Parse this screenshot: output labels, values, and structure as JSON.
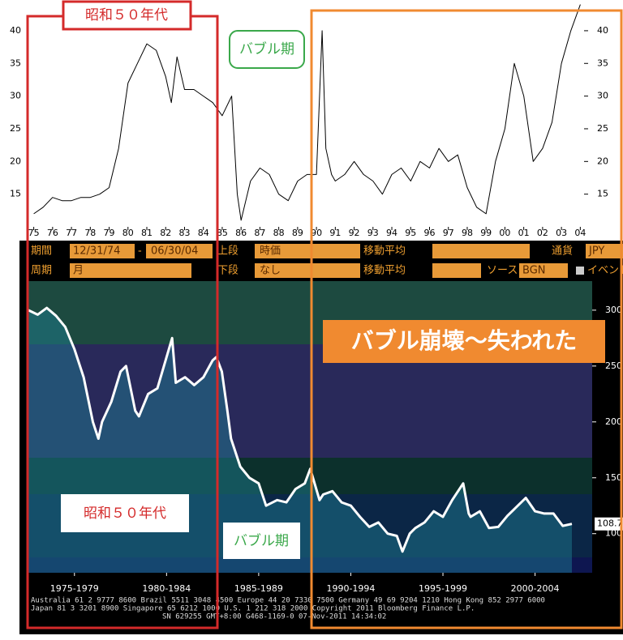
{
  "chart_data": [
    {
      "type": "line",
      "x": [
        1975,
        1975.5,
        1976,
        1976.5,
        1977,
        1977.5,
        1978,
        1978.5,
        1979,
        1979.5,
        1980,
        1980.5,
        1981,
        1981.5,
        1982,
        1982.3,
        1982.6,
        1983,
        1983.5,
        1984,
        1984.5,
        1985,
        1985.5,
        1985.8,
        1986,
        1986.5,
        1987,
        1987.5,
        1988,
        1988.5,
        1989,
        1989.5,
        1990,
        1990.3,
        1990.5,
        1990.8,
        1991,
        1991.5,
        1992,
        1992.5,
        1993,
        1993.5,
        1994,
        1994.5,
        1995,
        1995.5,
        1996,
        1996.5,
        1997,
        1997.5,
        1998,
        1998.5,
        1999,
        1999.5,
        2000,
        2000.5,
        2001,
        2001.5,
        2002,
        2002.5,
        2003,
        2003.5,
        2004
      ],
      "series": [
        {
          "color": "#000000",
          "values": [
            12,
            13,
            14.5,
            14,
            14,
            14.5,
            14.5,
            15,
            16,
            22,
            32,
            35,
            38,
            37,
            33,
            29,
            36,
            31,
            31,
            30,
            29,
            27,
            30,
            15,
            11,
            17,
            19,
            18,
            15,
            14,
            17,
            18,
            18,
            40,
            22,
            18,
            17,
            18,
            20,
            18,
            17,
            15,
            18,
            19,
            17,
            20,
            19,
            22,
            20,
            21,
            16,
            13,
            12,
            20,
            25,
            35,
            30,
            20,
            22,
            26,
            35,
            40,
            44
          ]
        }
      ],
      "xlim": [
        1974.5,
        2004.2
      ],
      "ylim": [
        10,
        44.7
      ],
      "xticks": [
        {
          "value": 1975,
          "label": "75"
        },
        {
          "value": 1976,
          "label": "76"
        },
        {
          "value": 1977,
          "label": "77"
        },
        {
          "value": 1978,
          "label": "78"
        },
        {
          "value": 1979,
          "label": "79"
        },
        {
          "value": 1980,
          "label": "80"
        },
        {
          "value": 1981,
          "label": "81"
        },
        {
          "value": 1982,
          "label": "82"
        },
        {
          "value": 1983,
          "label": "83"
        },
        {
          "value": 1984,
          "label": "84"
        },
        {
          "value": 1985,
          "label": "85"
        },
        {
          "value": 1986,
          "label": "86"
        },
        {
          "value": 1987,
          "label": "87"
        },
        {
          "value": 1988,
          "label": "88"
        },
        {
          "value": 1989,
          "label": "89"
        },
        {
          "value": 1990,
          "label": "90"
        },
        {
          "value": 1991,
          "label": "91"
        },
        {
          "value": 1992,
          "label": "92"
        },
        {
          "value": 1993,
          "label": "93"
        },
        {
          "value": 1994,
          "label": "94"
        },
        {
          "value": 1995,
          "label": "95"
        },
        {
          "value": 1996,
          "label": "96"
        },
        {
          "value": 1997,
          "label": "97"
        },
        {
          "value": 1998,
          "label": "98"
        },
        {
          "value": 1999,
          "label": "99"
        },
        {
          "value": 2000,
          "label": "00"
        },
        {
          "value": 2001,
          "label": "01"
        },
        {
          "value": 2002,
          "label": "02"
        },
        {
          "value": 2003,
          "label": "03"
        },
        {
          "value": 2004,
          "label": "04"
        }
      ],
      "yticks": [
        15,
        20,
        25,
        30,
        35,
        40
      ]
    },
    {
      "type": "line",
      "x": [
        1975,
        1975.5,
        1976,
        1976.5,
        1977,
        1977.5,
        1978,
        1978.5,
        1978.8,
        1979,
        1979.5,
        1980,
        1980.3,
        1980.8,
        1981,
        1981.5,
        1982,
        1982.8,
        1983,
        1983.5,
        1984,
        1984.5,
        1985,
        1985.2,
        1985.5,
        1985.8,
        1986,
        1986.5,
        1987,
        1987.5,
        1987.9,
        1988.5,
        1989,
        1989.5,
        1990,
        1990.3,
        1990.8,
        1991,
        1991.5,
        1992,
        1992.5,
        1993,
        1993.5,
        1994,
        1994.5,
        1995,
        1995.3,
        1995.7,
        1996,
        1996.5,
        1997,
        1997.5,
        1998,
        1998.6,
        1998.9,
        1999,
        1999.5,
        2000,
        2000.5,
        2001,
        2001.5,
        2002,
        2002.5,
        2003,
        2003.5,
        2004,
        2004.5
      ],
      "series": [
        {
          "color": "#ffffff",
          "values": [
            300,
            296,
            302,
            295,
            285,
            265,
            240,
            200,
            185,
            200,
            218,
            245,
            250,
            210,
            205,
            225,
            230,
            275,
            235,
            240,
            233,
            240,
            255,
            258,
            245,
            210,
            185,
            160,
            150,
            145,
            125,
            130,
            128,
            140,
            145,
            158,
            130,
            135,
            138,
            128,
            125,
            115,
            106,
            110,
            100,
            98,
            84,
            100,
            105,
            110,
            120,
            115,
            130,
            145,
            118,
            115,
            120,
            105,
            106,
            116,
            124,
            132,
            120,
            118,
            118,
            107,
            108.7
          ]
        }
      ],
      "xlim": [
        1975,
        2005.6
      ],
      "ylim": [
        65,
        326
      ],
      "xticks": [
        {
          "value": 1977.5,
          "label": "1975-1979"
        },
        {
          "value": 1982.5,
          "label": "1980-1984"
        },
        {
          "value": 1987.5,
          "label": "1985-1989"
        },
        {
          "value": 1992.5,
          "label": "1990-1994"
        },
        {
          "value": 1997.5,
          "label": "1995-1999"
        },
        {
          "value": 2002.5,
          "label": "2000-2004"
        }
      ],
      "yticks": [
        100,
        150,
        200,
        250,
        300
      ]
    }
  ],
  "terminal": {
    "row1": {
      "period_label": "期間",
      "start": "12/31/74",
      "dash": "-",
      "end": "06/30/04",
      "upper_label": "上段",
      "upper_value": "時価",
      "ma": "移動平均",
      "currency_label": "通貨",
      "currency": "JPY"
    },
    "row2": {
      "cycle_label": "周期",
      "cycle": "月",
      "lower_label": "下段",
      "lower_value": "なし",
      "ma": "移動平均",
      "source_label": "ソース",
      "source": "BGN",
      "event": "イベント"
    }
  },
  "footer": [
    "Australia 61 2 9777 8600 Brazil 5511 3048 4500 Europe 44 20 7330 7500 Germany 49 69 9204 1210 Hong Kong 852 2977 6000",
    "Japan 81 3 3201 8900       Singapore 65 6212 1000       U.S. 1 212 318 2000       Copyright 2011 Bloomberg Finance L.P.",
    "SN 629255        GMT+8:00 G468-1169-0 07-Nov-2011 14:34:02"
  ],
  "annotations": {
    "showa_top": "昭和５０年代",
    "bubble_top": "バブル期",
    "lost": "バブル崩壊〜失われた",
    "showa_bottom": "昭和５０年代",
    "bubble_bottom": "バブル期"
  }
}
